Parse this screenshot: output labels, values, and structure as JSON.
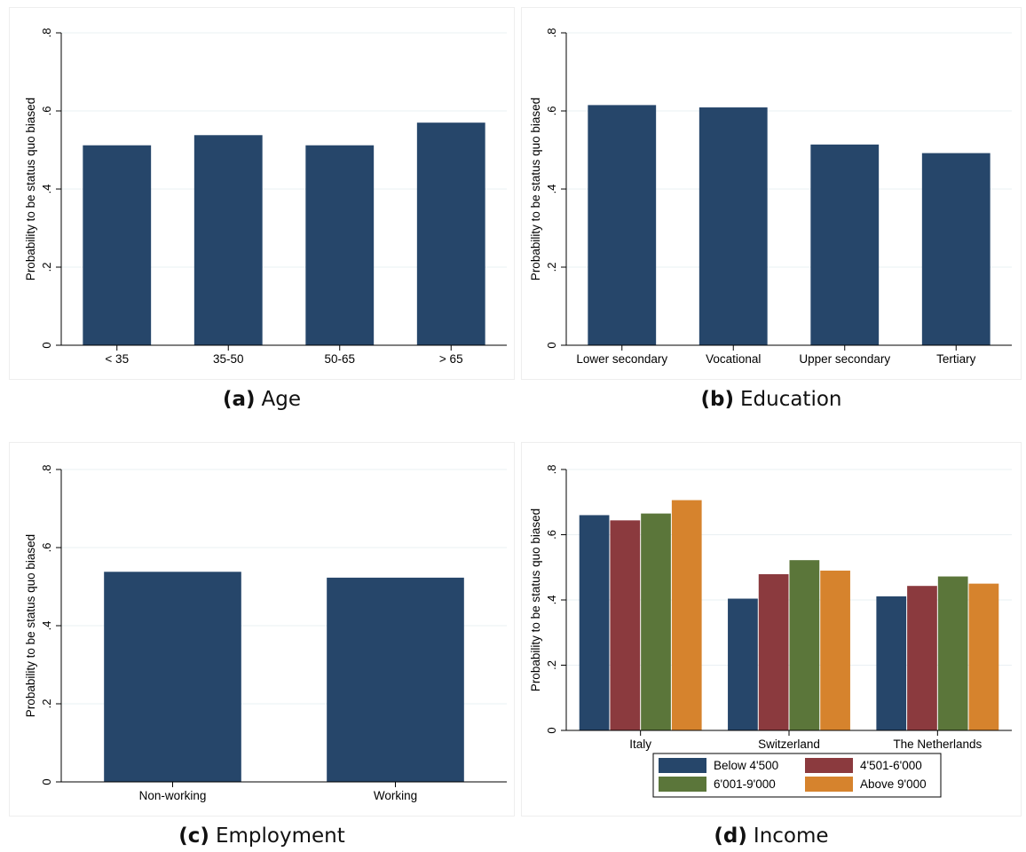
{
  "colors": {
    "navy": "#26466a",
    "maroon": "#8b3a3e",
    "green": "#5b763a",
    "orange": "#d6832d",
    "grid": "#eaf0f3",
    "axis": "#000000"
  },
  "chart_data": [
    {
      "id": "a",
      "type": "bar",
      "label": "(a)",
      "caption": "Age",
      "ylabel": "Probability to be status quo biased",
      "ylim": [
        0,
        0.8
      ],
      "yticks": [
        0,
        0.2,
        0.4,
        0.6,
        0.8
      ],
      "ytick_labels": [
        "0",
        ".2",
        ".4",
        ".6",
        ".8"
      ],
      "grid": true,
      "categories": [
        "< 35",
        "35-50",
        "50-65",
        "> 65"
      ],
      "series": [
        {
          "values": [
            0.512,
            0.538,
            0.512,
            0.57
          ],
          "color": "#26466a"
        }
      ]
    },
    {
      "id": "b",
      "type": "bar",
      "label": "(b)",
      "caption": "Education",
      "ylabel": "Probability to be status quo biased",
      "ylim": [
        0,
        0.8
      ],
      "yticks": [
        0,
        0.2,
        0.4,
        0.6,
        0.8
      ],
      "ytick_labels": [
        "0",
        ".2",
        ".4",
        ".6",
        ".8"
      ],
      "grid": true,
      "categories": [
        "Lower secondary",
        "Vocational",
        "Upper secondary",
        "Tertiary"
      ],
      "series": [
        {
          "values": [
            0.615,
            0.609,
            0.514,
            0.492
          ],
          "color": "#26466a"
        }
      ]
    },
    {
      "id": "c",
      "type": "bar",
      "label": "(c)",
      "caption": "Employment",
      "ylabel": "Probability to be status quo biased",
      "ylim": [
        0,
        0.8
      ],
      "yticks": [
        0,
        0.2,
        0.4,
        0.6,
        0.8
      ],
      "ytick_labels": [
        "0",
        ".2",
        ".4",
        ".6",
        ".8"
      ],
      "grid": true,
      "categories": [
        "Non-working",
        "Working"
      ],
      "series": [
        {
          "values": [
            0.538,
            0.523
          ],
          "color": "#26466a"
        }
      ]
    },
    {
      "id": "d",
      "type": "bar",
      "label": "(d)",
      "caption": "Income",
      "ylabel": "Probability to be status quo biased",
      "ylim": [
        0,
        0.8
      ],
      "yticks": [
        0,
        0.2,
        0.4,
        0.6,
        0.8
      ],
      "ytick_labels": [
        "0",
        ".2",
        ".4",
        ".6",
        ".8"
      ],
      "grid": true,
      "legend": "bottom",
      "categories": [
        "Italy",
        "Switzerland",
        "The Netherlands"
      ],
      "series": [
        {
          "name": "Below 4'500",
          "values": [
            0.66,
            0.404,
            0.411
          ],
          "color": "#26466a"
        },
        {
          "name": "4'501-6'000",
          "values": [
            0.644,
            0.479,
            0.443
          ],
          "color": "#8b3a3e"
        },
        {
          "name": "6'001-9'000",
          "values": [
            0.665,
            0.522,
            0.472
          ],
          "color": "#5b763a"
        },
        {
          "name": "Above 9'000",
          "values": [
            0.706,
            0.49,
            0.45
          ],
          "color": "#d6832d"
        }
      ]
    }
  ]
}
